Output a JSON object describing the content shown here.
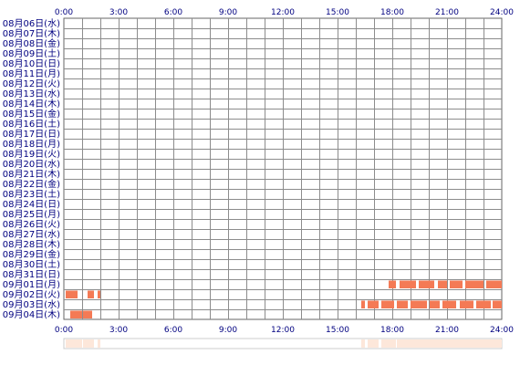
{
  "chart_data": {
    "type": "heatmap",
    "title": "",
    "xlabel": "",
    "ylabel": "",
    "x_ticks": [
      "0:00",
      "3:00",
      "6:00",
      "9:00",
      "12:00",
      "15:00",
      "18:00",
      "21:00",
      "24:00"
    ],
    "x_range_hours": [
      0,
      24
    ],
    "rows": [
      "08月06日(水)",
      "08月07日(木)",
      "08月08日(金)",
      "08月09日(土)",
      "08月10日(日)",
      "08月11日(月)",
      "08月12日(火)",
      "08月13日(水)",
      "08月14日(木)",
      "08月15日(金)",
      "08月16日(土)",
      "08月17日(日)",
      "08月18日(月)",
      "08月19日(火)",
      "08月20日(水)",
      "08月21日(木)",
      "08月22日(金)",
      "08月23日(土)",
      "08月24日(日)",
      "08月25日(月)",
      "08月26日(火)",
      "08月27日(水)",
      "08月28日(木)",
      "08月29日(金)",
      "08月30日(土)",
      "08月31日(日)",
      "09月01日(月)",
      "09月02日(火)",
      "09月03日(水)",
      "09月04日(木)"
    ],
    "activity_hours": {
      "09月01日(月)": [
        [
          17.8,
          18.2
        ],
        [
          18.4,
          19.3
        ],
        [
          19.45,
          20.3
        ],
        [
          20.5,
          21.0
        ],
        [
          21.15,
          21.85
        ],
        [
          22.0,
          23.0
        ],
        [
          23.15,
          24.0
        ]
      ],
      "09月02日(火)": [
        [
          0.1,
          0.75
        ],
        [
          1.3,
          1.65
        ],
        [
          1.85,
          2.0
        ]
      ],
      "09月03日(水)": [
        [
          16.3,
          16.5
        ],
        [
          16.65,
          17.25
        ],
        [
          17.4,
          18.1
        ],
        [
          18.25,
          18.85
        ],
        [
          19.0,
          19.9
        ],
        [
          20.05,
          20.6
        ],
        [
          20.75,
          21.5
        ],
        [
          21.7,
          22.45
        ],
        [
          22.6,
          23.4
        ],
        [
          23.5,
          24.0
        ]
      ],
      "09月04日(木)": [
        [
          0.35,
          1.0
        ],
        [
          1.05,
          1.55
        ]
      ]
    },
    "summary_strip": true,
    "grid": true,
    "colors": {
      "bar": "#f47a55",
      "grid_line": "#8c8c8c",
      "grid_border": "#666666",
      "label": "#000080",
      "summary_fill": "#fde7da",
      "summary_border": "#cccccc"
    }
  }
}
